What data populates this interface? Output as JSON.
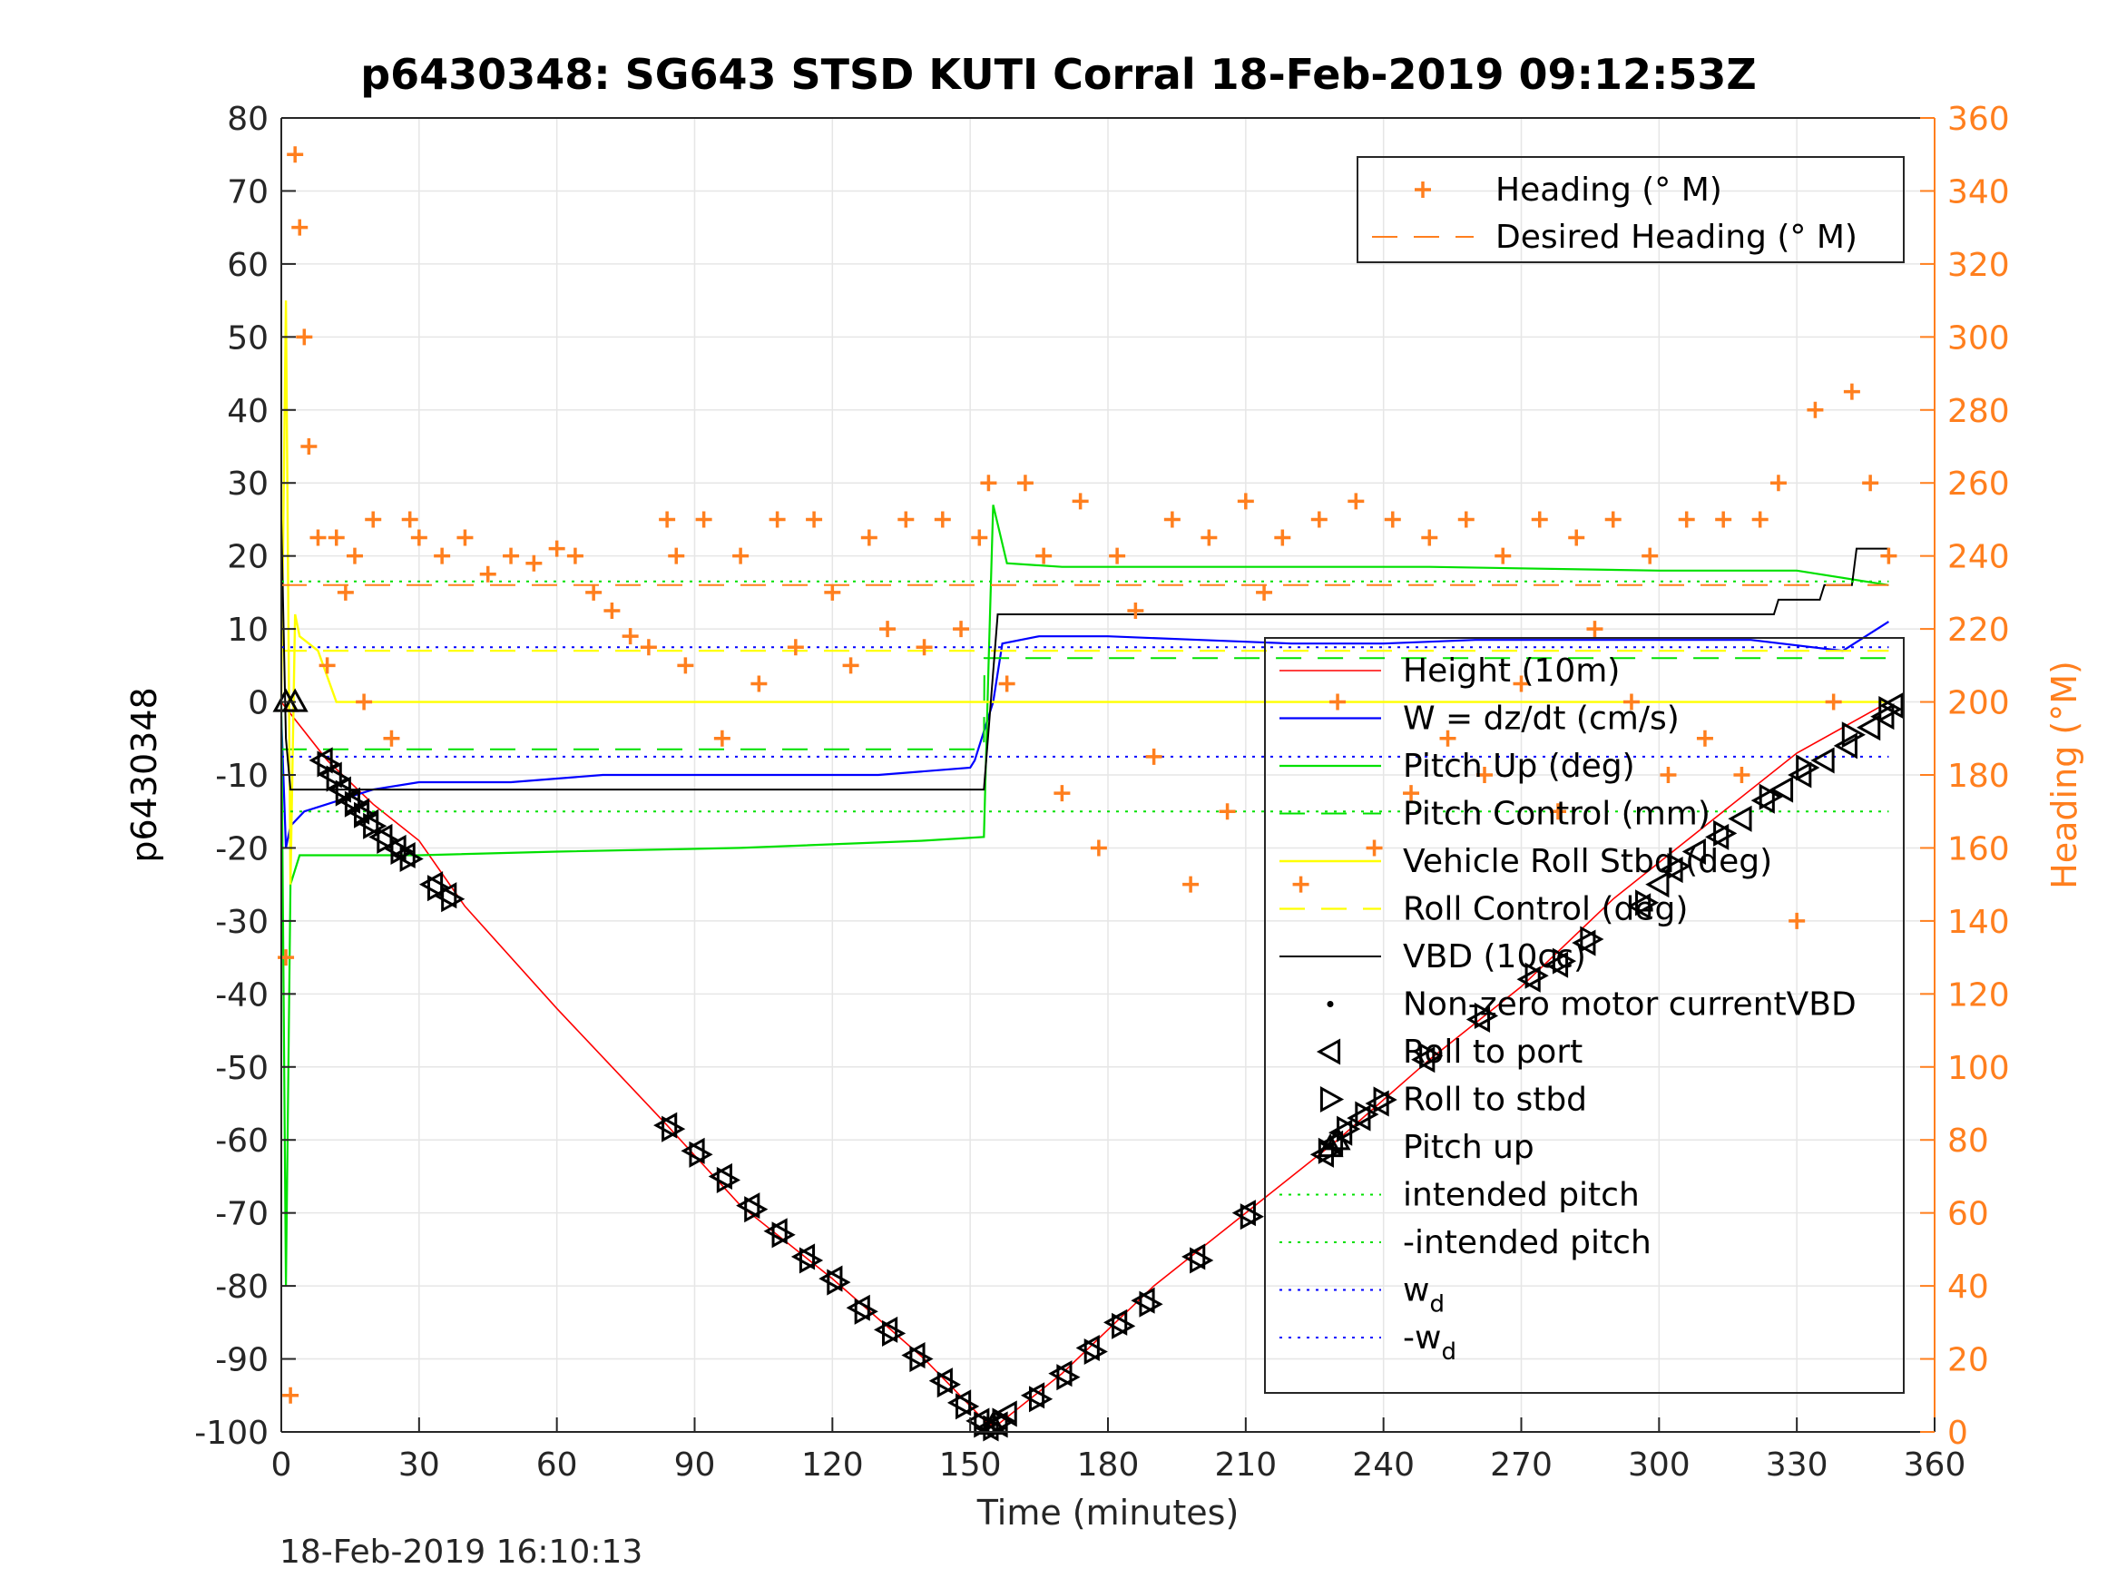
{
  "title": "p6430348: SG643 STSD KUTI Corral 18-Feb-2019 09:12:53Z",
  "footer_timestamp": "18-Feb-2019 16:10:13",
  "colors": {
    "height": "#ff0000",
    "w": "#0000ff",
    "pitch": "#00e000",
    "roll": "#ffff00",
    "vbd": "#000000",
    "heading": "#ff7f1e",
    "grid": "#e6e6e6",
    "axis": "#262626"
  },
  "chart_data": {
    "type": "line",
    "xlabel": "Time (minutes)",
    "ylabel": "p6430348",
    "ylabel_right": "Heading (°M)",
    "xlim": [
      0,
      360
    ],
    "ylim": [
      -100,
      80
    ],
    "ylim_right": [
      0,
      360
    ],
    "x_ticks": [
      0,
      30,
      60,
      90,
      120,
      150,
      180,
      210,
      240,
      270,
      300,
      330,
      360
    ],
    "y_ticks": [
      80,
      70,
      60,
      50,
      40,
      30,
      20,
      10,
      0,
      -10,
      -20,
      -30,
      -40,
      -50,
      -60,
      -70,
      -80,
      -90,
      -100
    ],
    "y_ticks_right": [
      360,
      340,
      320,
      300,
      280,
      260,
      240,
      220,
      200,
      180,
      160,
      140,
      120,
      100,
      80,
      60,
      40,
      20,
      0
    ],
    "grid": true,
    "series": [
      {
        "name": "Height (10m)",
        "style": "red-line",
        "x": [
          0,
          10,
          20,
          30,
          40,
          60,
          84,
          100,
          120,
          140,
          154,
          156,
          170,
          190,
          210,
          230,
          250,
          270,
          290,
          310,
          330,
          350
        ],
        "y": [
          0,
          -8,
          -14,
          -19,
          -28,
          -42,
          -58,
          -69,
          -79,
          -90,
          -99,
          -99,
          -92,
          -80,
          -70,
          -60,
          -49,
          -39,
          -27,
          -17,
          -7,
          0
        ]
      },
      {
        "name": "W = dz/dt (cm/s)",
        "style": "blue-line",
        "x": [
          0,
          1,
          2,
          5,
          10,
          15,
          20,
          30,
          50,
          70,
          90,
          110,
          130,
          150,
          151,
          155,
          157,
          165,
          180,
          200,
          220,
          240,
          260,
          280,
          300,
          320,
          340,
          350
        ],
        "y": [
          -2,
          -20,
          -17,
          -15,
          -14,
          -13,
          -12,
          -11,
          -11,
          -10,
          -10,
          -10,
          -10,
          -9,
          -8,
          0,
          8,
          9,
          9,
          8.5,
          8,
          8,
          8.5,
          8.5,
          8.5,
          8.5,
          7,
          11
        ]
      },
      {
        "name": "Pitch Up (deg)",
        "style": "green-line",
        "x": [
          0,
          1,
          2,
          4,
          10,
          30,
          60,
          100,
          140,
          153,
          154,
          155,
          158,
          170,
          200,
          250,
          300,
          330,
          350
        ],
        "y": [
          0,
          -80,
          -25,
          -21,
          -21,
          -21,
          -20.5,
          -20,
          -19,
          -18.5,
          5,
          27,
          19,
          18.5,
          18.5,
          18.5,
          18,
          18,
          16
        ]
      },
      {
        "name": "Pitch Control (mm)",
        "style": "green-dash",
        "x": [
          0,
          153,
          153.1,
          350
        ],
        "y": [
          -6.5,
          -6.5,
          6,
          6
        ]
      },
      {
        "name": "Vehicle Roll Stbd (deg)",
        "style": "yellow-line",
        "x": [
          0,
          1,
          2,
          3,
          4,
          8,
          12,
          16,
          30,
          60,
          90,
          120,
          150,
          160,
          200,
          250,
          300,
          340,
          350
        ],
        "y": [
          0,
          55,
          -25,
          12,
          9,
          7,
          0,
          0,
          0,
          0,
          0,
          0,
          0,
          0,
          0,
          0,
          0,
          0,
          0
        ]
      },
      {
        "name": "Roll Control (deg)",
        "style": "yellow-dash",
        "x": [
          0,
          350
        ],
        "y": [
          7,
          7
        ]
      },
      {
        "name": "VBD (10cc)",
        "style": "black-line",
        "x": [
          0,
          1,
          2,
          152,
          153,
          156,
          157,
          325,
          326,
          335,
          336,
          342,
          343,
          350
        ],
        "y": [
          25,
          -5,
          -12,
          -12,
          -12,
          12,
          12,
          12,
          14,
          14,
          16,
          16,
          21,
          21
        ]
      },
      {
        "name": "intended pitch",
        "style": "green-dot",
        "x": [
          0,
          350
        ],
        "y": [
          16.5,
          16.5
        ]
      },
      {
        "name": "-intended pitch",
        "style": "green-dot",
        "x": [
          0,
          350
        ],
        "y": [
          -15,
          -15
        ]
      },
      {
        "name": "w_d",
        "style": "blue-dot",
        "x": [
          0,
          350
        ],
        "y": [
          7.5,
          7.5
        ]
      },
      {
        "name": "-w_d",
        "style": "blue-dot",
        "x": [
          0,
          350
        ],
        "y": [
          -7.5,
          -7.5
        ]
      },
      {
        "name": "Heading (° M)",
        "axis": "right",
        "style": "orange-plus",
        "x": [
          1,
          2,
          3,
          4,
          5,
          6,
          8,
          10,
          12,
          14,
          16,
          18,
          20,
          24,
          28,
          30,
          35,
          40,
          45,
          50,
          55,
          60,
          64,
          68,
          72,
          76,
          80,
          84,
          86,
          88,
          92,
          96,
          100,
          104,
          108,
          112,
          116,
          120,
          124,
          128,
          132,
          136,
          140,
          144,
          148,
          152,
          154,
          158,
          162,
          166,
          170,
          174,
          178,
          182,
          186,
          190,
          194,
          198,
          202,
          206,
          210,
          214,
          218,
          222,
          226,
          230,
          234,
          238,
          242,
          246,
          250,
          254,
          258,
          262,
          266,
          270,
          274,
          278,
          282,
          286,
          290,
          294,
          298,
          302,
          306,
          310,
          314,
          318,
          322,
          326,
          330,
          334,
          338,
          342,
          346,
          350
        ],
        "y": [
          130,
          10,
          350,
          330,
          300,
          270,
          245,
          210,
          245,
          230,
          240,
          200,
          250,
          190,
          250,
          245,
          240,
          245,
          235,
          240,
          238,
          242,
          240,
          230,
          225,
          218,
          215,
          250,
          240,
          210,
          250,
          190,
          240,
          205,
          250,
          215,
          250,
          230,
          210,
          245,
          220,
          250,
          215,
          250,
          220,
          245,
          260,
          205,
          260,
          240,
          175,
          255,
          160,
          240,
          225,
          185,
          250,
          150,
          245,
          170,
          255,
          230,
          245,
          150,
          250,
          200,
          255,
          160,
          250,
          175,
          245,
          190,
          250,
          180,
          240,
          205,
          250,
          170,
          245,
          220,
          250,
          200,
          240,
          180,
          250,
          190,
          250,
          180,
          250,
          260,
          140,
          280,
          200,
          285,
          260,
          240
        ]
      },
      {
        "name": "Desired Heading (° M)",
        "axis": "right",
        "style": "orange-dash",
        "x": [
          0,
          350
        ],
        "y": [
          232,
          232
        ]
      }
    ],
    "markers": [
      {
        "name": "Non-zero motor currentVBD",
        "symbol": "dot",
        "x": [],
        "y": []
      },
      {
        "name": "Roll to port",
        "symbol": "triangle-left",
        "x": [
          9,
          11,
          13,
          15,
          17,
          19,
          22,
          25,
          27,
          33,
          36,
          84,
          90,
          96,
          102,
          108,
          114,
          120,
          126,
          132,
          138,
          144,
          148,
          152,
          154,
          156,
          158,
          164,
          170,
          176,
          182,
          188,
          199,
          210,
          227,
          229,
          231,
          235,
          239,
          249,
          261,
          272,
          278,
          284,
          296,
          300,
          303,
          308,
          313,
          318,
          323,
          327,
          331,
          336,
          341,
          346,
          349,
          351
        ],
        "y": [
          -8,
          -10,
          -12,
          -13.5,
          -15,
          -16.5,
          -18.5,
          -20,
          -21,
          -25,
          -26.5,
          -58,
          -61.5,
          -65,
          -69,
          -72.5,
          -76,
          -79,
          -83,
          -86,
          -89.5,
          -93,
          -96,
          -98.5,
          -99.5,
          -99,
          -97.5,
          -95,
          -92,
          -88.5,
          -85,
          -82,
          -76,
          -70,
          -62,
          -60.5,
          -59,
          -57,
          -55,
          -49,
          -43.5,
          -38,
          -36,
          -33,
          -28,
          -25,
          -23,
          -20.5,
          -18.5,
          -16,
          -13.5,
          -12,
          -10,
          -8,
          -6,
          -3.5,
          -2,
          -0.5
        ]
      },
      {
        "name": "Roll to stbd",
        "symbol": "triangle-right",
        "x": [
          10,
          12,
          14,
          16,
          18,
          20,
          23,
          26,
          28,
          34,
          37,
          85,
          91,
          97,
          103,
          109,
          115,
          121,
          127,
          133,
          139,
          145,
          149,
          153,
          155,
          157,
          165,
          171,
          177,
          183,
          189,
          200,
          211,
          228,
          232,
          236,
          240,
          250,
          262,
          273,
          279,
          285,
          297,
          304,
          314,
          324,
          332,
          342,
          350
        ],
        "y": [
          -8.5,
          -10.5,
          -12.5,
          -14,
          -15.5,
          -17,
          -19,
          -20.5,
          -21.5,
          -25.5,
          -27,
          -58.5,
          -62,
          -65.5,
          -69.5,
          -73,
          -76.5,
          -79.5,
          -83.5,
          -86.5,
          -90,
          -93.5,
          -96.5,
          -99,
          -99.5,
          -98.5,
          -95.5,
          -92.5,
          -89,
          -85.5,
          -82.5,
          -76.5,
          -70.5,
          -61.5,
          -58.5,
          -56.5,
          -54.5,
          -48.5,
          -43,
          -37.5,
          -35.5,
          -32.5,
          -27.5,
          -22.5,
          -18,
          -13,
          -9,
          -4.5,
          -1
        ]
      },
      {
        "name": "Pitch up",
        "symbol": "triangle-up",
        "x": [
          1,
          3,
          230,
          155
        ],
        "y": [
          0,
          0,
          -60,
          -99
        ]
      }
    ],
    "legends": [
      {
        "placement": "top-right",
        "entries": [
          "Heading (° M)",
          "Desired Heading (° M)"
        ]
      },
      {
        "placement": "center-right",
        "entries": [
          "Height (10m)",
          "W = dz/dt (cm/s)",
          "Pitch Up (deg)",
          "Pitch Control (mm)",
          "Vehicle Roll Stbd (deg)",
          "Roll Control (deg)",
          "VBD (10cc)",
          "Non-zero motor currentVBD",
          "Roll to port",
          "Roll to stbd",
          "Pitch up",
          "intended pitch",
          "-intended pitch",
          "w_d",
          "-w_d"
        ]
      }
    ]
  }
}
